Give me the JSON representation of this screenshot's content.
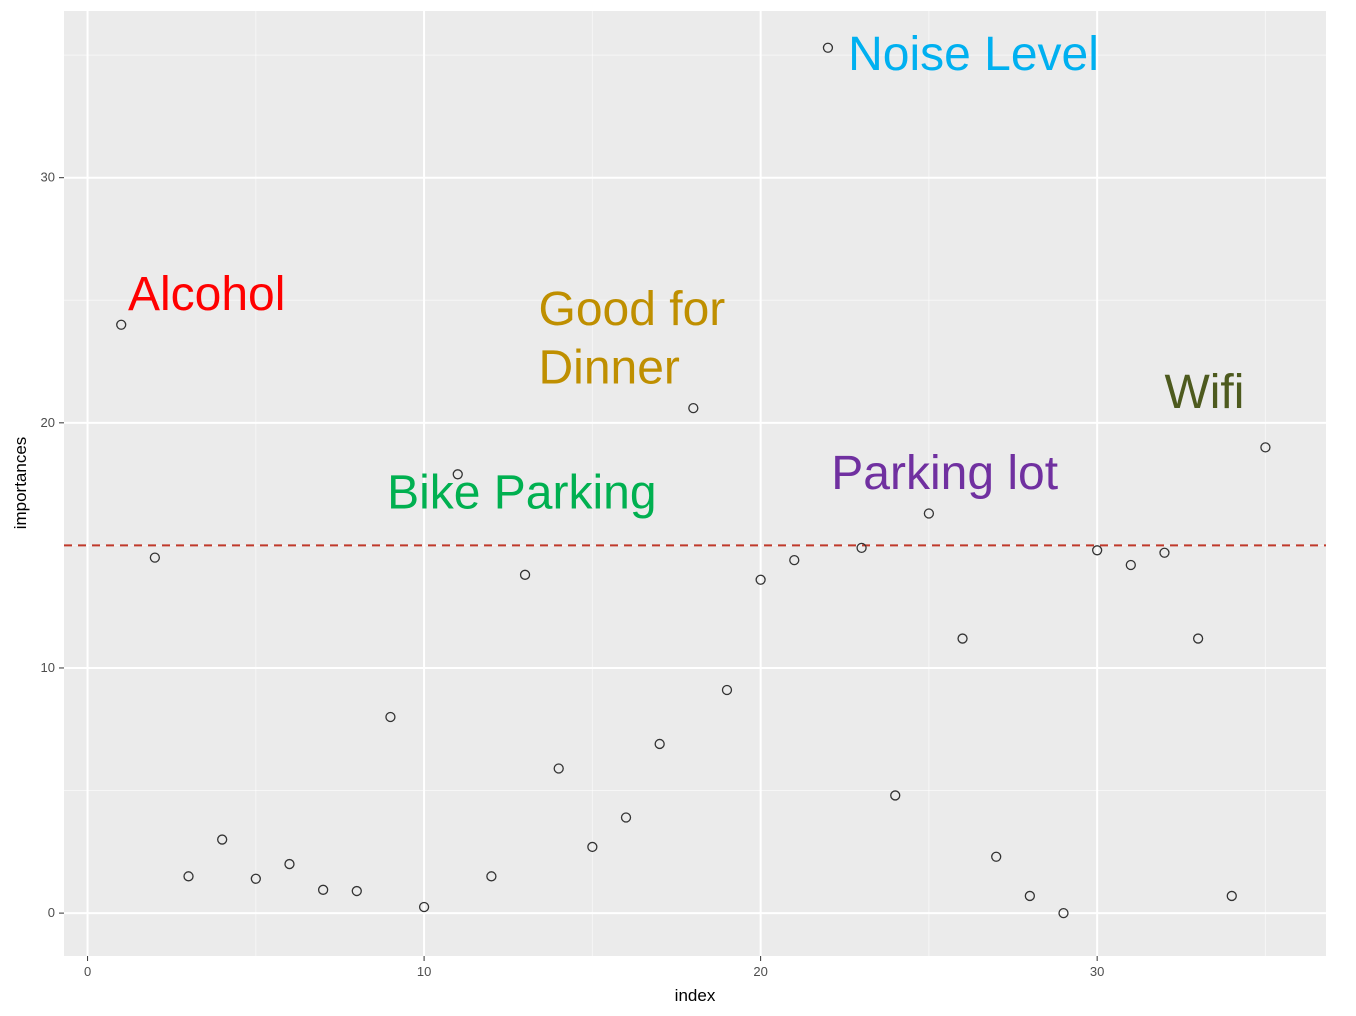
{
  "chart_data": {
    "type": "scatter",
    "xlabel": "index",
    "ylabel": "importances",
    "xlim": [
      -0.7,
      36.8
    ],
    "ylim": [
      -1.75,
      36.8
    ],
    "xticks": [
      0,
      10,
      20,
      30
    ],
    "yticks": [
      0,
      10,
      20,
      30
    ],
    "grid": true,
    "x": [
      1,
      2,
      3,
      4,
      5,
      6,
      7,
      8,
      9,
      10,
      11,
      12,
      13,
      14,
      15,
      16,
      17,
      18,
      19,
      20,
      21,
      22,
      23,
      24,
      25,
      26,
      27,
      28,
      29,
      30,
      31,
      32,
      33,
      34,
      35
    ],
    "y": [
      24.0,
      14.5,
      1.5,
      3.0,
      1.4,
      2.0,
      0.95,
      0.9,
      8.0,
      0.25,
      17.9,
      1.5,
      13.8,
      5.9,
      2.7,
      3.9,
      6.9,
      20.6,
      9.1,
      13.6,
      14.4,
      35.3,
      14.9,
      4.8,
      16.3,
      11.2,
      2.3,
      0.7,
      0.0,
      14.8,
      14.2,
      14.7,
      11.2,
      0.7,
      19.0
    ],
    "hline": {
      "y": 15,
      "color": "#c0392b",
      "style": "dashed"
    },
    "annotations": [
      {
        "text": "Alcohol",
        "x": 1.2,
        "y": 24.6,
        "color": "#ff0000"
      },
      {
        "text": "Good for",
        "x": 13.4,
        "y": 24.0,
        "color": "#bf8f00"
      },
      {
        "text": "Dinner",
        "x": 13.4,
        "y": 21.6,
        "color": "#bf8f00"
      },
      {
        "text": "Bike Parking",
        "x": 8.9,
        "y": 16.5,
        "color": "#00b050"
      },
      {
        "text": "Noise Level",
        "x": 22.6,
        "y": 34.4,
        "color": "#00b0f0"
      },
      {
        "text": "Parking lot",
        "x": 22.1,
        "y": 17.3,
        "color": "#7030a0"
      },
      {
        "text": "Wifi",
        "x": 32.0,
        "y": 20.6,
        "color": "#4d5a1e"
      }
    ],
    "colors": {
      "panel": "#ebebeb",
      "grid_major": "#ffffff",
      "point_stroke": "#333333"
    }
  }
}
